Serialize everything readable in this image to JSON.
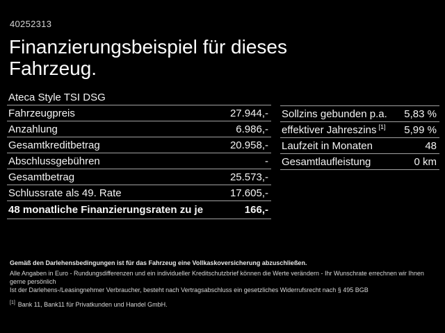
{
  "page": {
    "background_color": "#000000",
    "text_color": "#f2f2f2",
    "divider_color": "#a3a3a3"
  },
  "header": {
    "reference_number": "40252313",
    "title": "Finanzierungsbeispiel für dieses Fahrzeug.",
    "model": "Ateca Style TSI DSG"
  },
  "finance_table": {
    "rows": [
      {
        "label": "Fahrzeugpreis",
        "value": "27.944,-"
      },
      {
        "label": "Anzahlung",
        "value": "6.986,-"
      },
      {
        "label": "Gesamtkreditbetrag",
        "value": "20.958,-"
      },
      {
        "label": "Abschlussgebühren",
        "value": "-"
      },
      {
        "label": "Gesamtbetrag",
        "value": "25.573,-"
      },
      {
        "label": "Schlussrate als 49. Rate",
        "value": "17.605,-"
      }
    ],
    "total_row": {
      "label": "48 monatliche Finanzierungsraten zu je",
      "value": "166,-"
    }
  },
  "conditions_table": {
    "rows": [
      {
        "label": "Sollzins gebunden p.a.",
        "footnote_marker": "",
        "value": "5,83 %"
      },
      {
        "label": "effektiver Jahreszins",
        "footnote_marker": "[1]",
        "value": "5,99 %"
      },
      {
        "label": "Laufzeit in Monaten",
        "footnote_marker": "",
        "value": "48"
      },
      {
        "label": "Gesamtlaufleistung",
        "footnote_marker": "",
        "value": "0 km"
      }
    ]
  },
  "footer": {
    "bold_note": "Gemäß den Darlehensbedingungen ist für das Fahrzeug eine Vollkaskoversicherung abzuschließen.",
    "note_line_1": "Alle Angaben in Euro - Rundungsdifferenzen und ein individueller Kreditschutzbrief können die Werte verändern - Ihr Wunschrate errechnen wir Ihnen gerne persönlich",
    "note_line_2": "Ist der Darlehens-/Leasingnehmer Verbraucher, besteht nach Vertragsabschluss ein gesetzliches Widerrufsrecht nach § 495 BGB",
    "footnote": {
      "marker": "[1]",
      "text": "Bank 11, Bank11 für Privatkunden und Handel GmbH."
    }
  }
}
